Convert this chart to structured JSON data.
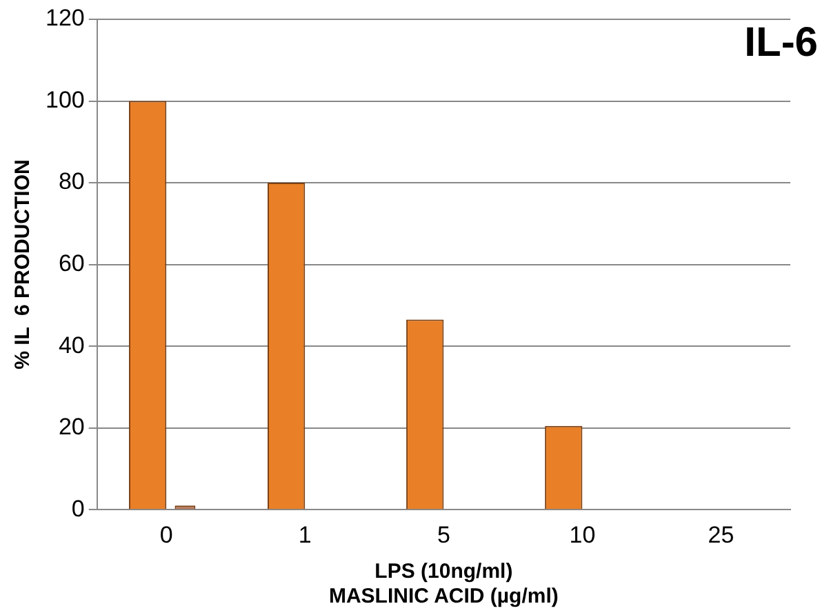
{
  "chart_data": {
    "type": "bar",
    "title": "IL-6",
    "xlabel": "LPS (10ng/ml)\nMASLINIC ACID (µg/ml)",
    "ylabel": "% IL  6 PRODUCTION",
    "categories": [
      "0",
      "1",
      "5",
      "10",
      "25"
    ],
    "series": [
      {
        "color": "#e97f26",
        "values": [
          100,
          80,
          46.5,
          20.5,
          0
        ]
      },
      {
        "color": "#b9775a",
        "values": [
          1,
          null,
          null,
          null,
          null
        ]
      }
    ],
    "ylim": [
      0,
      120
    ],
    "yticks": [
      0,
      20,
      40,
      60,
      80,
      100,
      120
    ],
    "grid": "y",
    "legend": false
  }
}
